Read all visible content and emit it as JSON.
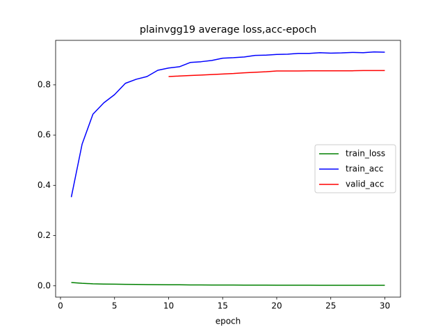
{
  "chart_data": {
    "type": "line",
    "title": "plainvgg19 average loss,acc-epoch",
    "xlabel": "epoch",
    "x": [
      1,
      2,
      3,
      4,
      5,
      6,
      7,
      8,
      9,
      10,
      11,
      12,
      13,
      14,
      15,
      16,
      17,
      18,
      19,
      20,
      21,
      22,
      23,
      24,
      25,
      26,
      27,
      28,
      29,
      30
    ],
    "series": [
      {
        "name": "train_loss",
        "color": "#008000",
        "values": [
          0.013,
          0.01,
          0.008,
          0.007,
          0.0065,
          0.006,
          0.0055,
          0.005,
          0.0045,
          0.004,
          0.004,
          0.0035,
          0.0035,
          0.003,
          0.003,
          0.003,
          0.0028,
          0.0027,
          0.0026,
          0.0025,
          0.0024,
          0.0023,
          0.0023,
          0.0022,
          0.0022,
          0.0021,
          0.0021,
          0.002,
          0.002,
          0.002
        ]
      },
      {
        "name": "train_acc",
        "color": "#0000ff",
        "values": [
          0.353,
          0.564,
          0.683,
          0.728,
          0.761,
          0.806,
          0.822,
          0.833,
          0.858,
          0.867,
          0.872,
          0.889,
          0.892,
          0.897,
          0.906,
          0.908,
          0.911,
          0.917,
          0.918,
          0.921,
          0.922,
          0.925,
          0.925,
          0.928,
          0.926,
          0.927,
          0.929,
          0.928,
          0.931,
          0.93
        ]
      },
      {
        "name": "valid_acc",
        "color": "#ff0000",
        "values": [
          null,
          null,
          null,
          null,
          null,
          null,
          null,
          null,
          null,
          0.833,
          0.835,
          0.837,
          0.839,
          0.841,
          0.843,
          0.845,
          0.848,
          0.85,
          0.852,
          0.855,
          0.855,
          0.855,
          0.856,
          0.856,
          0.856,
          0.856,
          0.856,
          0.857,
          0.857,
          0.857
        ]
      }
    ],
    "xlim": [
      -0.45,
      31.45
    ],
    "xticks": [
      0,
      5,
      10,
      15,
      20,
      25,
      30
    ],
    "ylim": [
      -0.045,
      0.977
    ],
    "yticks": [
      {
        "value": 0,
        "label": "0.0"
      },
      0.2,
      0.4,
      0.6,
      0.8
    ],
    "legend": "center right",
    "grid": false
  }
}
